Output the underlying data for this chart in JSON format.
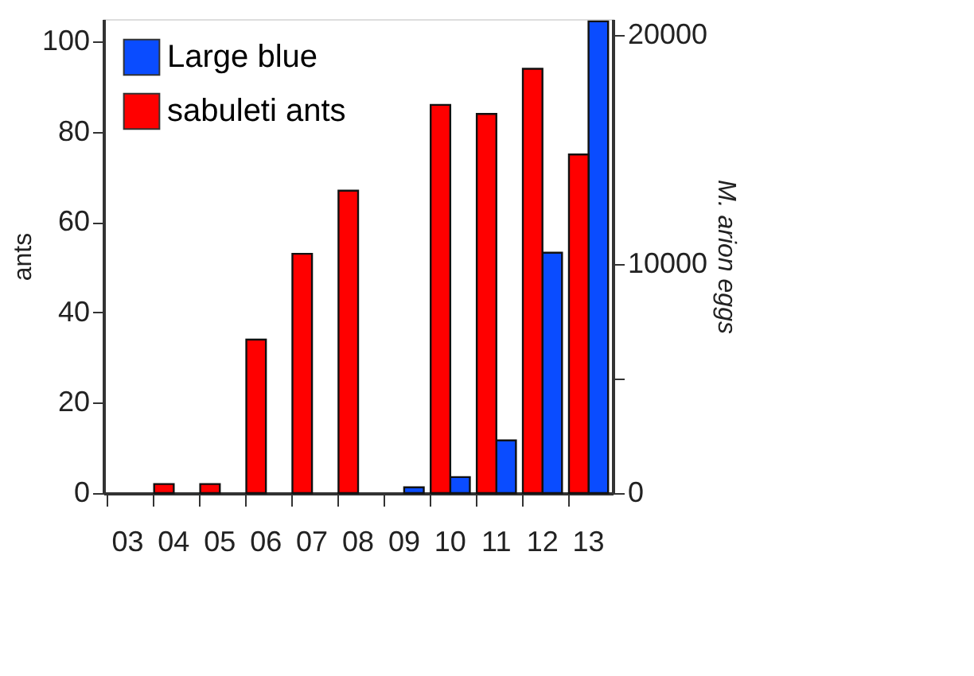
{
  "chart_data": {
    "type": "bar",
    "categories": [
      "03",
      "04",
      "05",
      "06",
      "07",
      "08",
      "09",
      "10",
      "11",
      "12",
      "13"
    ],
    "ylabel": "ants",
    "y2label": "M. arion eggs",
    "series": [
      {
        "name": "Large blue",
        "color": "#0a4cff",
        "axis": "y2",
        "values": [
          null,
          null,
          null,
          null,
          null,
          null,
          250,
          700,
          2300,
          10500,
          20600
        ]
      },
      {
        "name": "sabuleti ants",
        "color": "#ff0000",
        "values": [
          null,
          2,
          2,
          34,
          53,
          67,
          null,
          86,
          84,
          94,
          75
        ]
      }
    ],
    "ylim": [
      0,
      105
    ],
    "yticks": [
      0,
      20,
      40,
      60,
      80,
      100
    ],
    "y2lim": [
      0,
      20700
    ],
    "y2ticks": [
      0,
      {
        "value": 5000,
        "label": null
      },
      10000,
      20000
    ],
    "grid": false,
    "legend": "top left"
  }
}
